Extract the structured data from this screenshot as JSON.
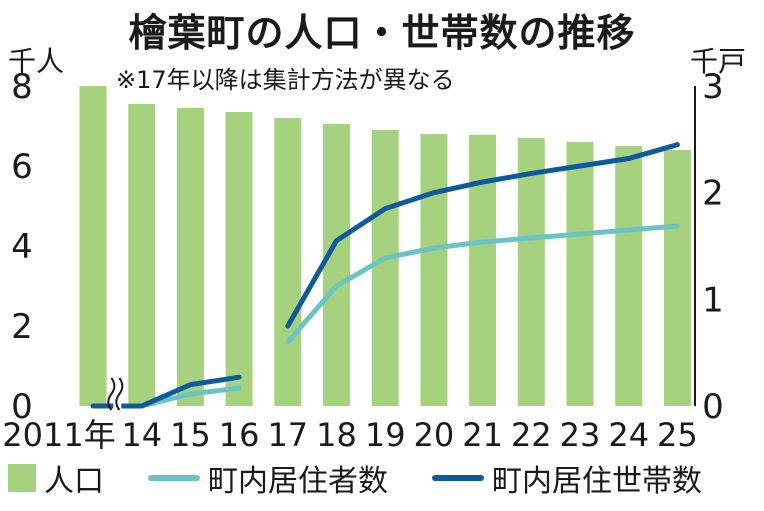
{
  "title": "檜葉町の人口・世帯数の推移",
  "subtitle": "※17年以降は集計方法が異なる",
  "left_unit": "千人",
  "right_unit": "千戸",
  "colors": {
    "bar": "#a6d17e",
    "residents": "#6cc4c0",
    "households": "#0f5a9a",
    "text": "#1a1a1a"
  },
  "chart_data": {
    "type": "bar",
    "title": "檜葉町の人口・世帯数の推移",
    "subtitle": "※17年以降は集計方法が異なる",
    "categories": [
      "2011年",
      "14",
      "15",
      "16",
      "17",
      "18",
      "19",
      "20",
      "21",
      "22",
      "23",
      "24",
      "25"
    ],
    "left_axis": {
      "unit": "千人",
      "ylim": [
        0,
        8
      ],
      "ticks": [
        "0",
        "2",
        "4",
        "6",
        "8"
      ]
    },
    "right_axis": {
      "unit": "千戸",
      "ylim": [
        0,
        3
      ],
      "ticks": [
        "0",
        "1",
        "2",
        "3"
      ]
    },
    "axis_break_after": "2011年",
    "grid": false,
    "legend_position": "bottom",
    "series": [
      {
        "name": "人口",
        "kind": "bar",
        "axis": "left",
        "values": [
          8.0,
          7.55,
          7.45,
          7.35,
          7.2,
          7.05,
          6.9,
          6.8,
          6.78,
          6.7,
          6.6,
          6.5,
          6.4
        ]
      },
      {
        "name": "町内居住者数",
        "kind": "line",
        "axis": "left",
        "segments": [
          {
            "categories": [
              "2011年",
              "14",
              "15",
              "16"
            ],
            "values": [
              0.0,
              0.0,
              0.3,
              0.45
            ]
          },
          {
            "categories": [
              "17",
              "18",
              "19",
              "20",
              "21",
              "22",
              "23",
              "24",
              "25"
            ],
            "values": [
              1.6,
              3.0,
              3.7,
              3.95,
              4.1,
              4.2,
              4.3,
              4.4,
              4.5
            ]
          }
        ]
      },
      {
        "name": "町内居住世帯数",
        "kind": "line",
        "axis": "right",
        "segments": [
          {
            "categories": [
              "2011年",
              "14",
              "15",
              "16"
            ],
            "values": [
              0.0,
              0.0,
              0.2,
              0.27
            ]
          },
          {
            "categories": [
              "17",
              "18",
              "19",
              "20",
              "21",
              "22",
              "23",
              "24",
              "25"
            ],
            "values": [
              0.75,
              1.55,
              1.85,
              2.0,
              2.1,
              2.18,
              2.25,
              2.32,
              2.45
            ]
          }
        ]
      }
    ]
  }
}
